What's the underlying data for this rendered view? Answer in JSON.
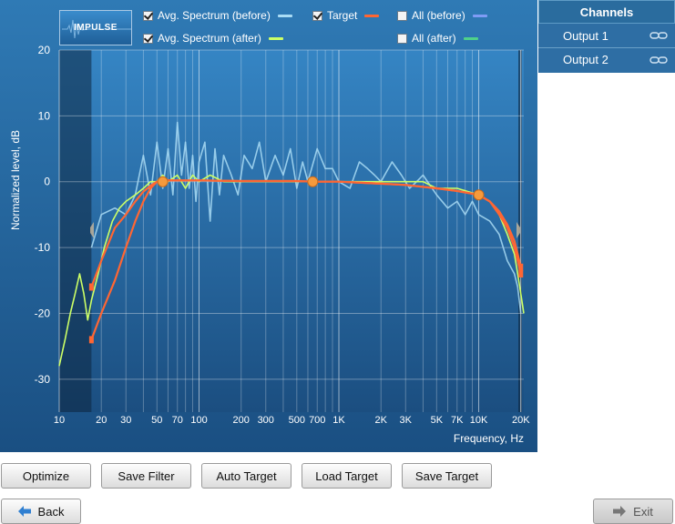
{
  "impulse_label": "IMPULSE",
  "legend": {
    "avg_before": {
      "label": "Avg. Spectrum (before)",
      "checked": true,
      "color": "#a9dcf5"
    },
    "target": {
      "label": "Target",
      "checked": true,
      "color": "#ff6633"
    },
    "all_before": {
      "label": "All (before)",
      "checked": false,
      "color": "#7f9cf5"
    },
    "avg_after": {
      "label": "Avg. Spectrum (after)",
      "checked": true,
      "color": "#ccff66"
    },
    "all_after": {
      "label": "All (after)",
      "checked": false,
      "color": "#4fd18a"
    }
  },
  "channels": {
    "header": "Channels",
    "items": [
      {
        "label": "Output 1"
      },
      {
        "label": "Output 2"
      }
    ]
  },
  "buttons": {
    "optimize": "Optimize",
    "save_filter": "Save Filter",
    "auto_target": "Auto Target",
    "load_target": "Load Target",
    "save_target": "Save Target",
    "back": "Back",
    "exit": "Exit"
  },
  "chart_data": {
    "type": "line",
    "xlabel": "Frequency, Hz",
    "ylabel": "Normalized level, dB",
    "xscale": "log",
    "xlim": [
      10,
      21000
    ],
    "ylim": [
      -35,
      20
    ],
    "x_ticks": [
      {
        "v": 10,
        "l": "10"
      },
      {
        "v": 20,
        "l": "20"
      },
      {
        "v": 30,
        "l": "30"
      },
      {
        "v": 50,
        "l": "50"
      },
      {
        "v": 70,
        "l": "70"
      },
      {
        "v": 100,
        "l": "100"
      },
      {
        "v": 200,
        "l": "200"
      },
      {
        "v": 300,
        "l": "300"
      },
      {
        "v": 500,
        "l": "500"
      },
      {
        "v": 700,
        "l": "700"
      },
      {
        "v": 1000,
        "l": "1K"
      },
      {
        "v": 2000,
        "l": "2K"
      },
      {
        "v": 3000,
        "l": "3K"
      },
      {
        "v": 5000,
        "l": "5K"
      },
      {
        "v": 7000,
        "l": "7K"
      },
      {
        "v": 10000,
        "l": "10K"
      },
      {
        "v": 20000,
        "l": "20K"
      }
    ],
    "y_ticks": [
      20,
      10,
      0,
      -10,
      -20,
      -30
    ],
    "grid": true,
    "shaded_range": [
      10,
      17
    ],
    "series": [
      {
        "key": "avg_before",
        "color": "#a9dcf5",
        "width": 1.6,
        "x": [
          17,
          20,
          25,
          30,
          35,
          40,
          45,
          50,
          55,
          60,
          65,
          70,
          75,
          80,
          85,
          90,
          95,
          100,
          110,
          120,
          130,
          140,
          150,
          170,
          190,
          210,
          240,
          270,
          300,
          350,
          400,
          450,
          500,
          550,
          600,
          700,
          800,
          900,
          1000,
          1200,
          1400,
          1600,
          1800,
          2000,
          2400,
          2800,
          3200,
          3600,
          4000,
          5000,
          6000,
          7000,
          8000,
          9000,
          10000,
          12000,
          14000,
          16000,
          18000,
          19000,
          20000
        ],
        "y": [
          -10,
          -5,
          -4,
          -5,
          -2,
          4,
          -2,
          6,
          -1,
          5,
          -2,
          9,
          1,
          6,
          -1,
          4,
          -3,
          3,
          6,
          -6,
          5,
          -2,
          4,
          1,
          -2,
          4,
          2,
          6,
          0,
          4,
          1,
          5,
          -1,
          3,
          0,
          5,
          2,
          2,
          0,
          -1,
          3,
          2,
          1,
          0,
          3,
          1,
          -1,
          0,
          1,
          -2,
          -4,
          -3,
          -5,
          -3,
          -5,
          -6,
          -8,
          -12,
          -14,
          -16,
          -20
        ]
      },
      {
        "key": "avg_after",
        "color": "#ccff66",
        "width": 1.6,
        "x": [
          10,
          11,
          12,
          13,
          14,
          15,
          16,
          17,
          19,
          21,
          24,
          27,
          30,
          35,
          40,
          45,
          50,
          55,
          60,
          70,
          80,
          90,
          100,
          120,
          150,
          200,
          300,
          500,
          700,
          1000,
          1500,
          2000,
          3000,
          4000,
          5000,
          7000,
          10000,
          12000,
          14000,
          16000,
          18000,
          19000,
          20000,
          21000
        ],
        "y": [
          -28,
          -24,
          -20,
          -17,
          -14,
          -17,
          -21,
          -18,
          -14,
          -10,
          -6,
          -4,
          -3,
          -2,
          -1,
          0,
          0,
          1,
          0,
          1,
          -1,
          1,
          0,
          1,
          0,
          0,
          0,
          0,
          0,
          0,
          0,
          0,
          0,
          0,
          -1,
          -1,
          -2,
          -3,
          -5,
          -8,
          -11,
          -14,
          -17,
          -20
        ]
      },
      {
        "key": "target",
        "color": "#ff6633",
        "width": 2.2,
        "x": [
          17,
          20,
          25,
          30,
          35,
          40,
          45,
          50,
          55,
          60,
          80,
          100,
          200,
          300,
          500,
          650,
          1000,
          2000,
          3000,
          5000,
          7000,
          10000,
          12000,
          14000,
          16000,
          18000,
          19000,
          20000
        ],
        "y": [
          -24,
          -20,
          -15,
          -10,
          -6,
          -3,
          -1,
          0,
          0.2,
          0.2,
          0.2,
          0.2,
          0.1,
          0.1,
          0.1,
          0,
          0,
          -0.3,
          -0.5,
          -1,
          -1.4,
          -2,
          -3,
          -4.5,
          -6.5,
          -9,
          -11,
          -13
        ]
      },
      {
        "key": "target",
        "color": "#ff6633",
        "width": 2.2,
        "x": [
          17,
          20,
          25,
          30,
          35,
          40,
          45,
          50,
          55,
          60,
          80,
          100,
          200,
          300,
          500,
          650,
          1000,
          2000,
          3000,
          5000,
          7000,
          10000,
          12000,
          14000,
          16000,
          18000,
          19000,
          20000
        ],
        "y": [
          -16,
          -12,
          -7,
          -5,
          -3,
          -1.5,
          -0.6,
          0,
          0.2,
          0.2,
          0.2,
          0.2,
          0.1,
          0.1,
          0.1,
          0,
          0,
          -0.3,
          -0.5,
          -1,
          -1.4,
          -2,
          -3,
          -5,
          -7,
          -10,
          -12,
          -14
        ]
      }
    ],
    "control_points": [
      {
        "x": 55,
        "y": 0
      },
      {
        "x": 650,
        "y": 0
      },
      {
        "x": 10000,
        "y": -2
      }
    ]
  }
}
